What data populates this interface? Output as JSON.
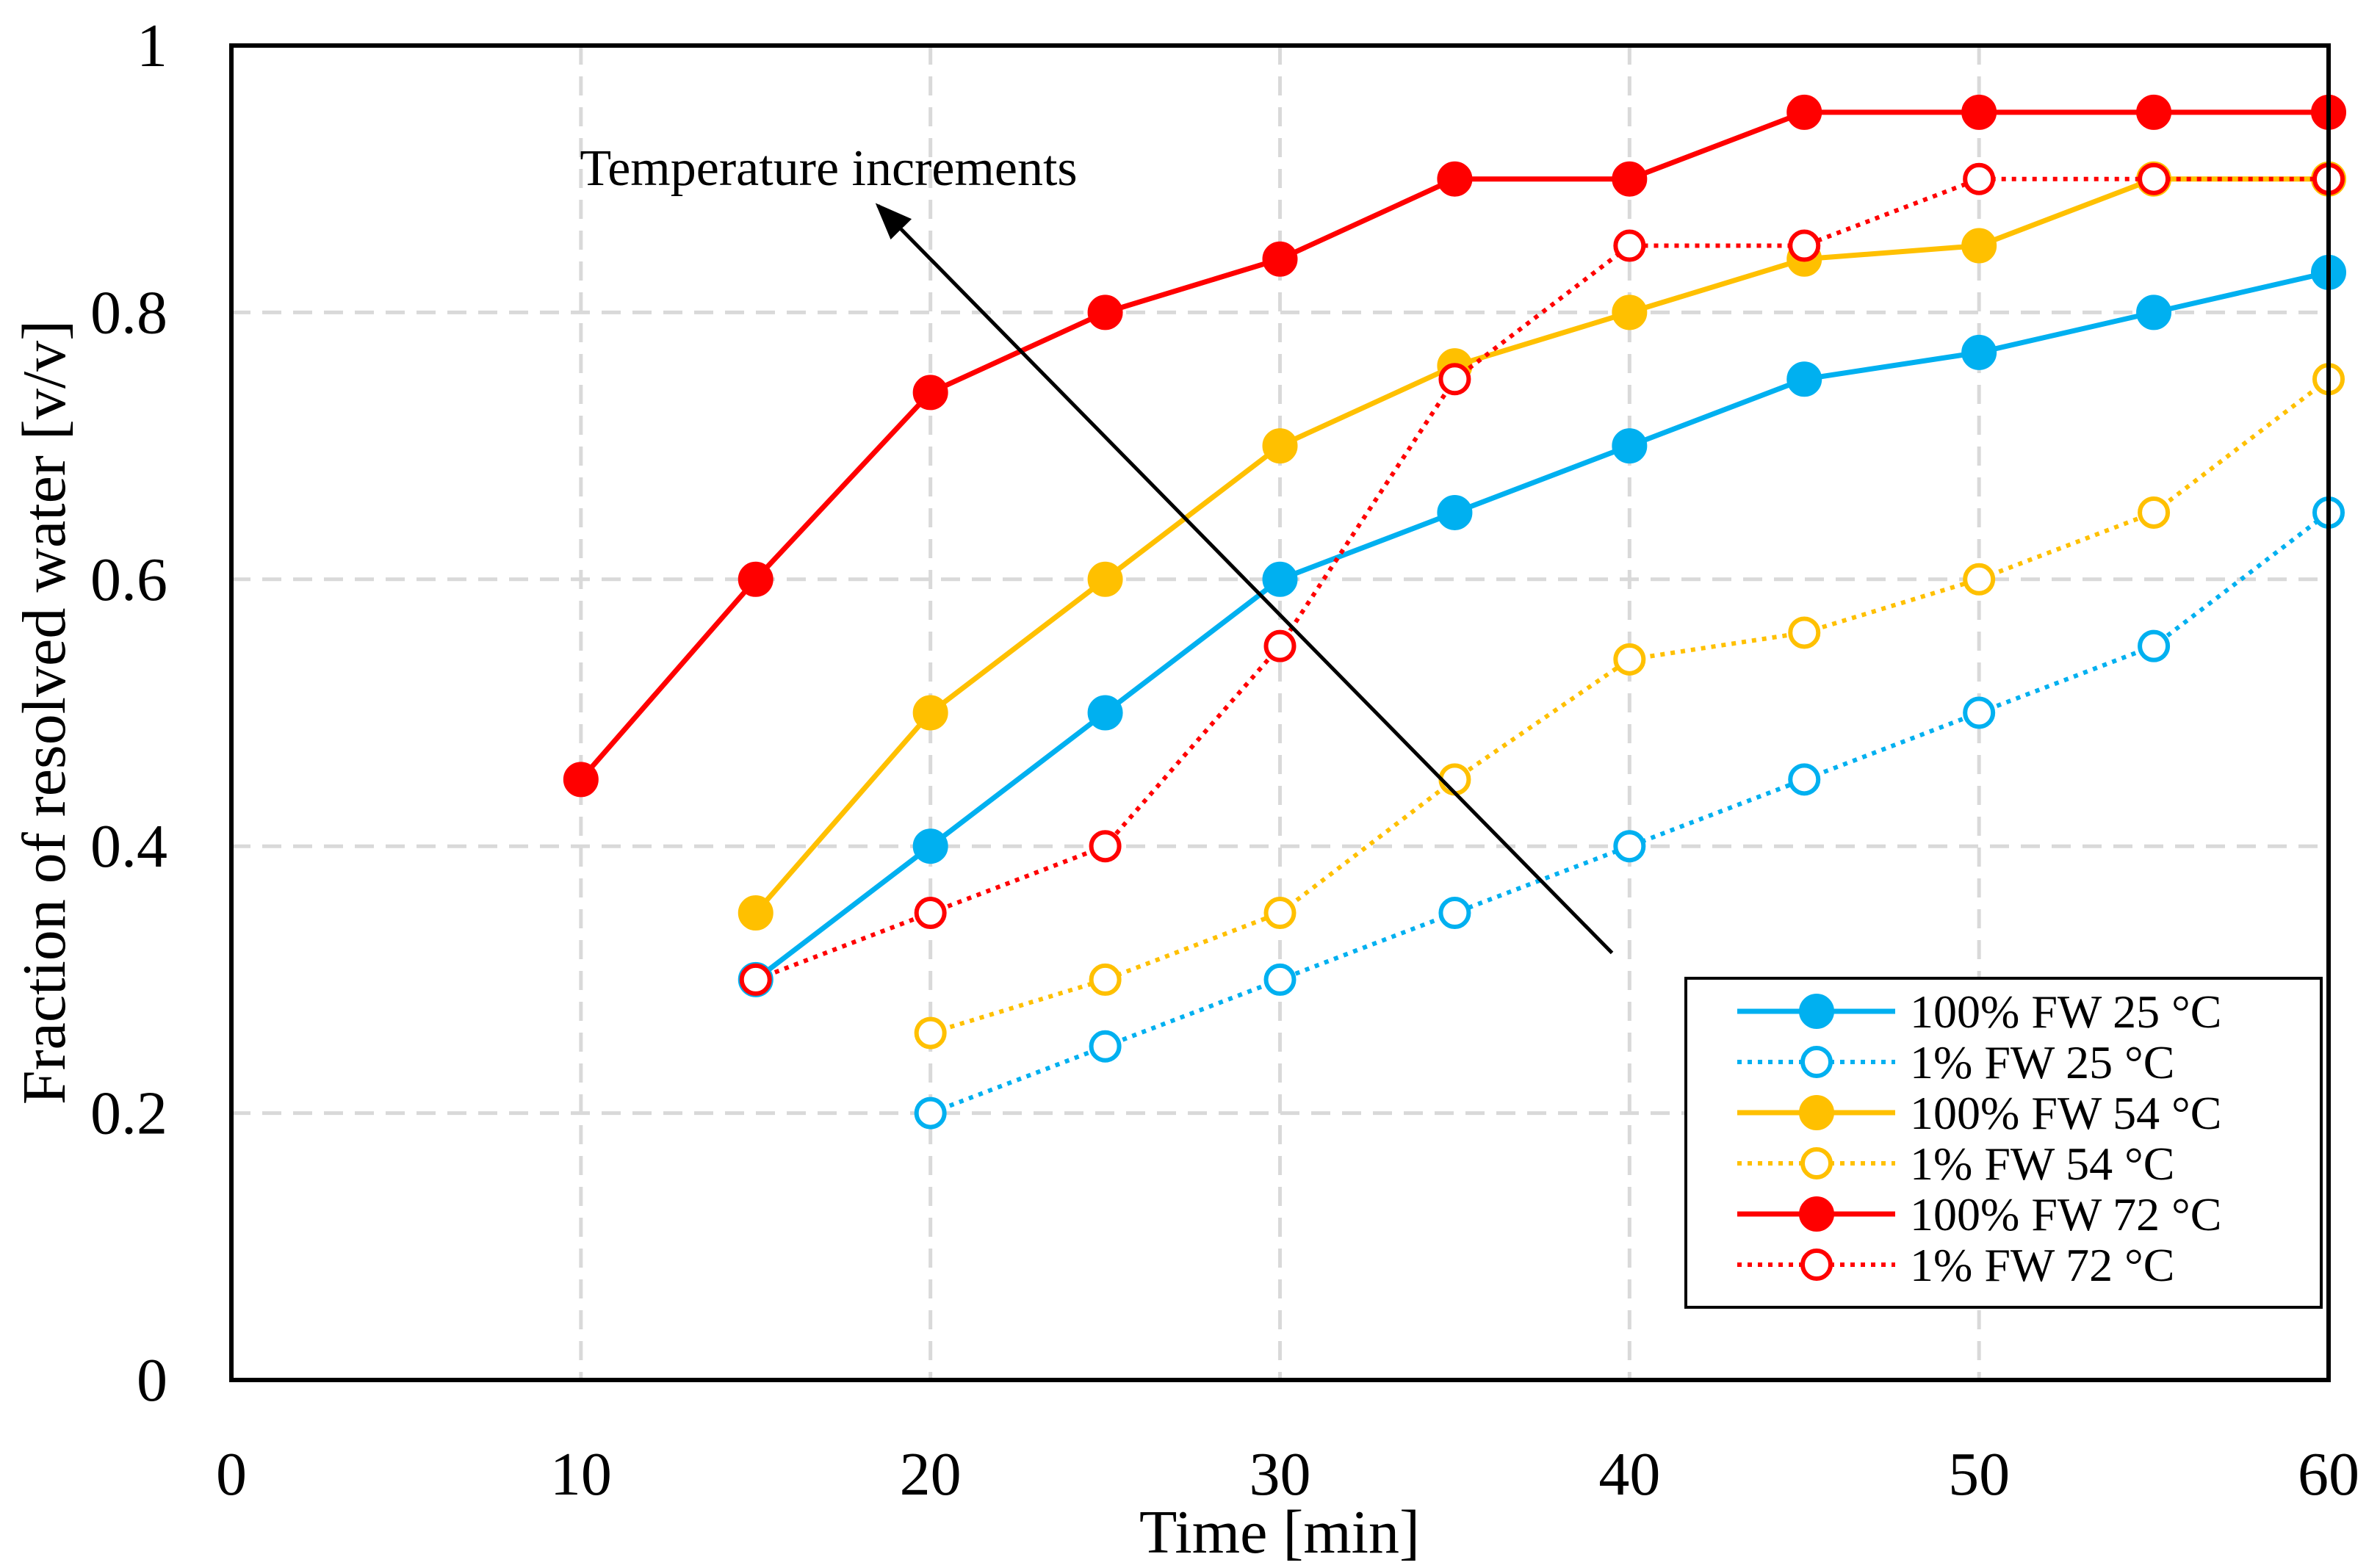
{
  "chart_data": {
    "type": "line",
    "title": "",
    "xlabel": "Time [min]",
    "ylabel": "Fraction of resolved water [v/v]",
    "xlim": [
      0,
      60
    ],
    "ylim": [
      0,
      1
    ],
    "xticks": [
      0,
      10,
      20,
      30,
      40,
      50,
      60
    ],
    "yticks": [
      0,
      0.2,
      0.4,
      0.6,
      0.8,
      1
    ],
    "ytick_labels": [
      "0",
      "0.2",
      "0.4",
      "0.6",
      "0.8",
      "1"
    ],
    "grid": true,
    "legend_position": "bottom-right",
    "annotation": {
      "text": "Temperature increments",
      "arrow_from": [
        39.5,
        0.32
      ],
      "arrow_to": [
        18.5,
        0.88
      ]
    },
    "series": [
      {
        "name": "100% FW 25 °C",
        "color": "#00b0f0",
        "style": "solid",
        "marker": "filled",
        "x": [
          15,
          20,
          25,
          30,
          35,
          40,
          45,
          50,
          55,
          60
        ],
        "y": [
          0.3,
          0.4,
          0.5,
          0.6,
          0.65,
          0.7,
          0.75,
          0.77,
          0.8,
          0.83
        ]
      },
      {
        "name": "1% FW 25 °C",
        "color": "#00b0f0",
        "style": "dotted",
        "marker": "open",
        "x": [
          20,
          25,
          30,
          35,
          40,
          45,
          50,
          55,
          60
        ],
        "y": [
          0.2,
          0.25,
          0.3,
          0.35,
          0.4,
          0.45,
          0.5,
          0.55,
          0.65
        ]
      },
      {
        "name": "100% FW 54 °C",
        "color": "#ffc000",
        "style": "solid",
        "marker": "filled",
        "x": [
          15,
          20,
          25,
          30,
          35,
          40,
          45,
          50,
          55,
          60
        ],
        "y": [
          0.35,
          0.5,
          0.6,
          0.7,
          0.76,
          0.8,
          0.84,
          0.85,
          0.9,
          0.9
        ]
      },
      {
        "name": "1% FW 54 °C",
        "color": "#ffc000",
        "style": "dotted",
        "marker": "open",
        "x": [
          20,
          25,
          30,
          35,
          40,
          45,
          50,
          55,
          60
        ],
        "y": [
          0.26,
          0.3,
          0.35,
          0.45,
          0.54,
          0.56,
          0.6,
          0.65,
          0.75
        ]
      },
      {
        "name": "100% FW 72 °C",
        "color": "#ff0000",
        "style": "solid",
        "marker": "filled",
        "x": [
          10,
          15,
          20,
          25,
          30,
          35,
          40,
          45,
          50,
          55,
          60
        ],
        "y": [
          0.45,
          0.6,
          0.74,
          0.8,
          0.84,
          0.9,
          0.9,
          0.95,
          0.95,
          0.95,
          0.95
        ]
      },
      {
        "name": "1% FW 72 °C",
        "color": "#ff0000",
        "style": "dotted",
        "marker": "open",
        "x": [
          15,
          20,
          25,
          30,
          35,
          40,
          45,
          50,
          55,
          60
        ],
        "y": [
          0.3,
          0.35,
          0.4,
          0.55,
          0.75,
          0.85,
          0.85,
          0.9,
          0.9,
          0.9
        ]
      }
    ]
  }
}
